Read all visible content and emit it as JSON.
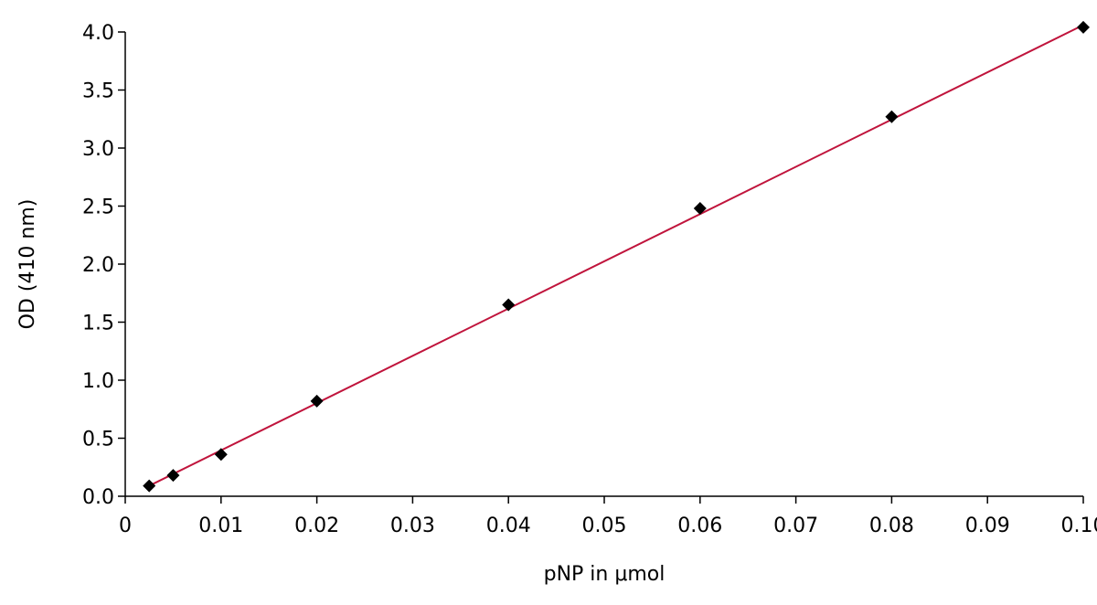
{
  "chart_data": {
    "type": "scatter",
    "xlabel": "pNP in μmol",
    "ylabel": "OD (410 nm)",
    "xlim": [
      0,
      0.1
    ],
    "ylim": [
      0,
      4.0
    ],
    "x_ticks": [
      0,
      0.01,
      0.02,
      0.03,
      0.04,
      0.05,
      0.06,
      0.07,
      0.08,
      0.09,
      0.1
    ],
    "x_tick_labels": [
      "0",
      "0.01",
      "0.02",
      "0.03",
      "0.04",
      "0.05",
      "0.06",
      "0.07",
      "0.08",
      "0.09",
      "0.10"
    ],
    "y_ticks": [
      0,
      0.5,
      1.0,
      1.5,
      2.0,
      2.5,
      3.0,
      3.5,
      4.0
    ],
    "y_tick_labels": [
      "0.0",
      "0.5",
      "1.0",
      "1.5",
      "2.0",
      "2.5",
      "3.0",
      "3.5",
      "4.0"
    ],
    "grid": false,
    "series": [
      {
        "marker": "diamond",
        "color": "#000000",
        "x": [
          0.0025,
          0.005,
          0.01,
          0.02,
          0.04,
          0.06,
          0.08,
          0.1
        ],
        "y": [
          0.09,
          0.18,
          0.36,
          0.82,
          1.65,
          2.48,
          3.27,
          4.04
        ]
      }
    ],
    "trendline": {
      "type": "linear",
      "color": "#c0143c",
      "x": [
        0.0025,
        0.1
      ],
      "y": [
        0.09,
        4.06
      ]
    }
  }
}
